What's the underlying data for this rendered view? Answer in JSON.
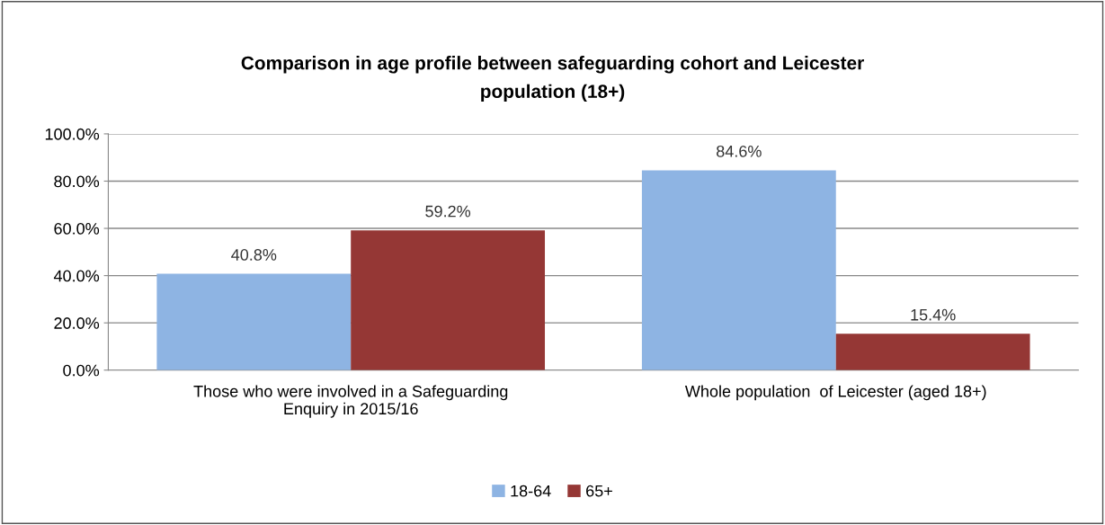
{
  "chart_data": {
    "type": "bar",
    "title": "Comparison in age profile between safeguarding cohort and Leicester\npopulation (18+)",
    "categories": [
      "Those who were involved in a Safeguarding\nEnquiry in 2015/16",
      "Whole population  of Leicester (aged 18+)"
    ],
    "series": [
      {
        "name": "18-64",
        "color": "#8eb4e3",
        "values": [
          40.8,
          84.6
        ],
        "value_labels": [
          "40.8%",
          "84.6%"
        ]
      },
      {
        "name": "65+",
        "color": "#953735",
        "values": [
          59.2,
          15.4
        ],
        "value_labels": [
          "59.2%",
          "15.4%"
        ]
      }
    ],
    "ylim": [
      0,
      100
    ],
    "yticks": [
      {
        "value": 0,
        "label": "0.0%"
      },
      {
        "value": 20,
        "label": "20.0%"
      },
      {
        "value": 40,
        "label": "40.0%"
      },
      {
        "value": 60,
        "label": "60.0%"
      },
      {
        "value": 80,
        "label": "80.0%"
      },
      {
        "value": 100,
        "label": "100.0%"
      }
    ],
    "grid": "y",
    "legend": "bottom"
  }
}
